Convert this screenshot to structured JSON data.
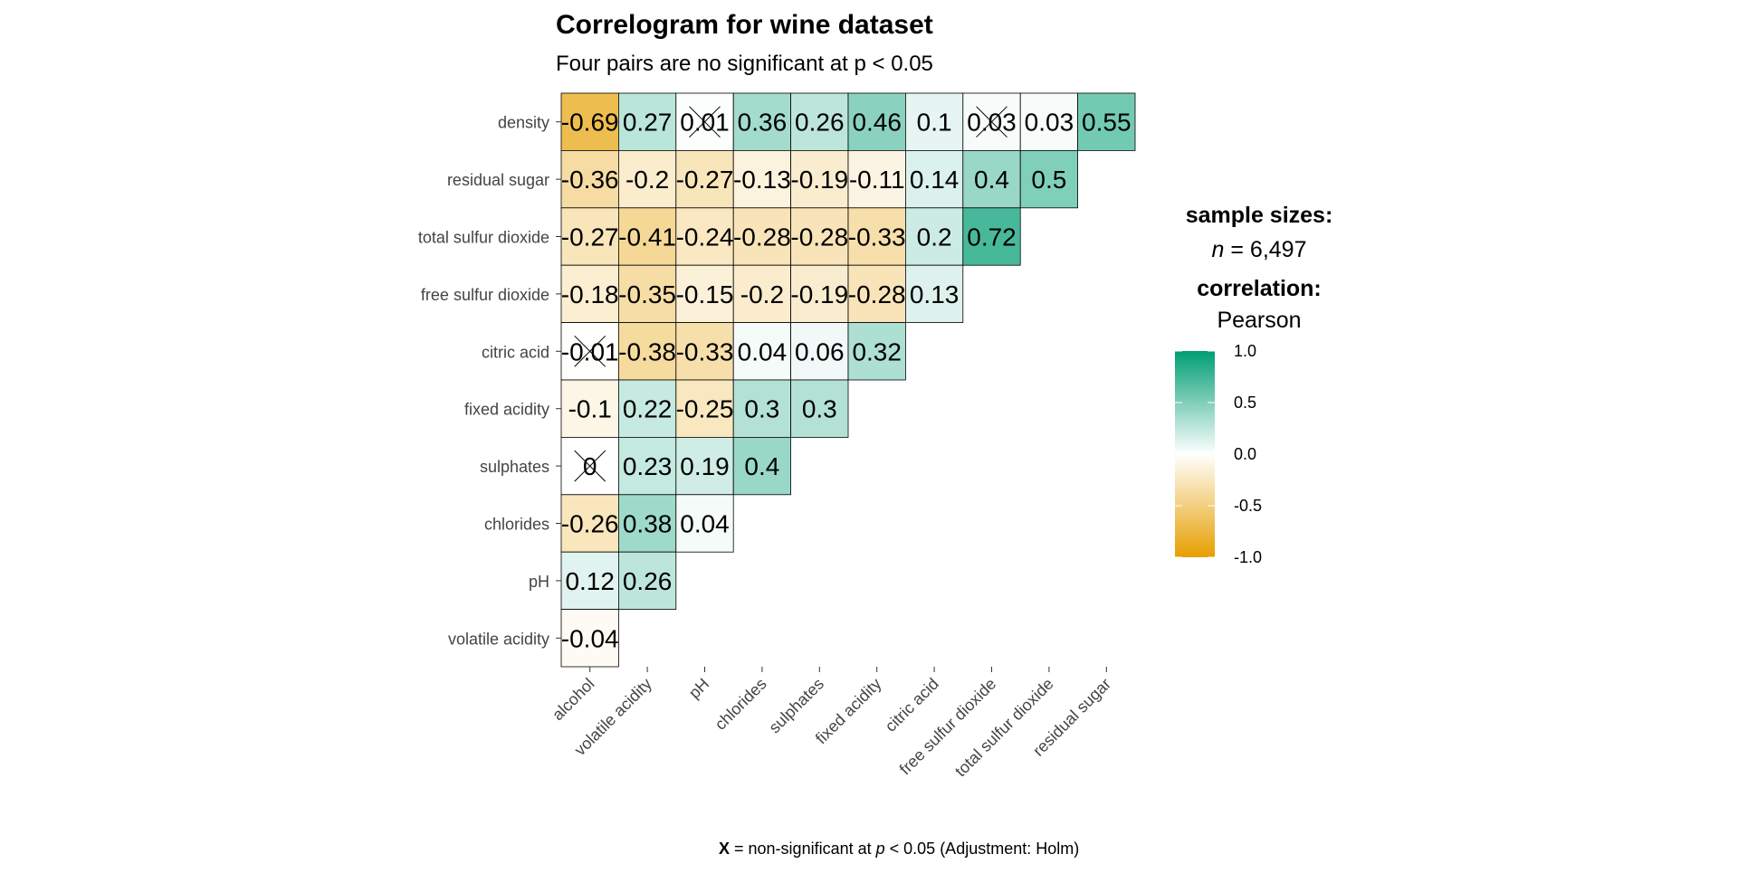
{
  "chart_data": {
    "type": "heatmap",
    "title": "Correlogram for wine dataset",
    "subtitle": "Four pairs are no significant at p < 0.05",
    "y_categories": [
      "density",
      "residual sugar",
      "total sulfur dioxide",
      "free sulfur dioxide",
      "citric acid",
      "fixed acidity",
      "sulphates",
      "chlorides",
      "pH",
      "volatile acidity"
    ],
    "x_categories": [
      "alcohol",
      "volatile acidity",
      "pH",
      "chlorides",
      "sulphates",
      "fixed acidity",
      "citric acid",
      "free sulfur dioxide",
      "total sulfur dioxide",
      "residual sugar"
    ],
    "labels": [
      [
        "-0.69",
        "0.27",
        "0.01",
        "0.36",
        "0.26",
        "0.46",
        "0.1",
        "0.03",
        "0.03",
        "0.55"
      ],
      [
        "-0.36",
        "-0.2",
        "-0.27",
        "-0.13",
        "-0.19",
        "-0.11",
        "0.14",
        "0.4",
        "0.5"
      ],
      [
        "-0.27",
        "-0.41",
        "-0.24",
        "-0.28",
        "-0.28",
        "-0.33",
        "0.2",
        "0.72"
      ],
      [
        "-0.18",
        "-0.35",
        "-0.15",
        "-0.2",
        "-0.19",
        "-0.28",
        "0.13"
      ],
      [
        "-0.01",
        "-0.38",
        "-0.33",
        "0.04",
        "0.06",
        "0.32"
      ],
      [
        "-0.1",
        "0.22",
        "-0.25",
        "0.3",
        "0.3"
      ],
      [
        "0",
        "0.23",
        "0.19",
        "0.4"
      ],
      [
        "-0.26",
        "0.38",
        "0.04"
      ],
      [
        "0.12",
        "0.26"
      ],
      [
        "-0.04"
      ]
    ],
    "values": [
      [
        -0.69,
        0.27,
        0.01,
        0.36,
        0.26,
        0.46,
        0.1,
        0.03,
        0.03,
        0.55
      ],
      [
        -0.36,
        -0.2,
        -0.27,
        -0.13,
        -0.19,
        -0.11,
        0.14,
        0.4,
        0.5
      ],
      [
        -0.27,
        -0.41,
        -0.24,
        -0.28,
        -0.28,
        -0.33,
        0.2,
        0.72
      ],
      [
        -0.18,
        -0.35,
        -0.15,
        -0.2,
        -0.19,
        -0.28,
        0.13
      ],
      [
        -0.01,
        -0.38,
        -0.33,
        0.04,
        0.06,
        0.32
      ],
      [
        -0.1,
        0.22,
        -0.25,
        0.3,
        0.3
      ],
      [
        0,
        0.23,
        0.19,
        0.4
      ],
      [
        -0.26,
        0.38,
        0.04
      ],
      [
        0.12,
        0.26
      ],
      [
        -0.04
      ]
    ],
    "nonsignificant": [
      [
        0,
        2
      ],
      [
        0,
        7
      ],
      [
        4,
        0
      ],
      [
        6,
        0
      ]
    ],
    "colors": {
      "low": "#E69F00",
      "mid": "#FFFFFF",
      "high": "#009E73",
      "cell_border": "#000000"
    },
    "legend": {
      "title_sample": "sample sizes:",
      "n_prefix": "n",
      "n_value": " = 6,497",
      "title_correlation": "correlation:",
      "method": "Pearson",
      "ticks": [
        "1.0",
        "0.5",
        "0.0",
        "-0.5",
        "-1.0"
      ],
      "range": [
        -1,
        1
      ],
      "position": "right"
    },
    "caption": {
      "mark": "X",
      "text1": " = non-significant at ",
      "p": "p",
      "text2": " < 0.05 (Adjustment: Holm)"
    }
  }
}
